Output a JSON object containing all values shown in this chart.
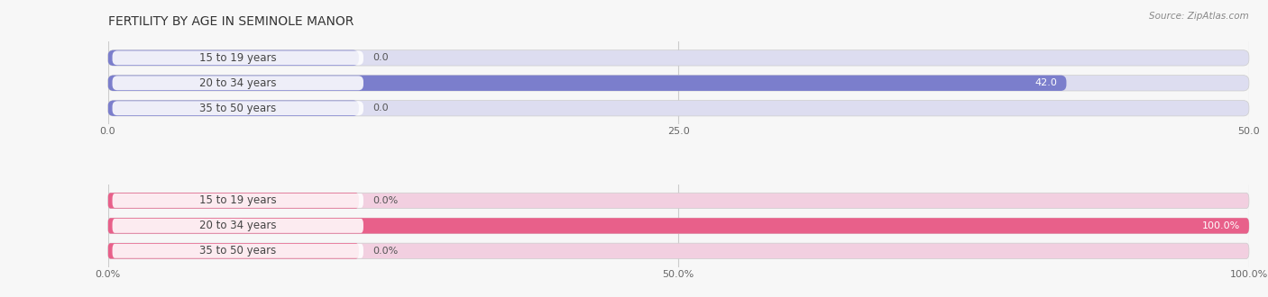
{
  "title": "FERTILITY BY AGE IN SEMINOLE MANOR",
  "source": "Source: ZipAtlas.com",
  "top_chart": {
    "categories": [
      "15 to 19 years",
      "20 to 34 years",
      "35 to 50 years"
    ],
    "values": [
      0.0,
      42.0,
      0.0
    ],
    "xlim": [
      0,
      50
    ],
    "xticks": [
      0.0,
      25.0,
      50.0
    ],
    "xtick_labels": [
      "0.0",
      "25.0",
      "50.0"
    ],
    "bar_color": "#7b7ecc",
    "bar_bg_color": "#ddddf0",
    "label_inside_color": "#ffffff",
    "label_outside_color": "#555555"
  },
  "bottom_chart": {
    "categories": [
      "15 to 19 years",
      "20 to 34 years",
      "35 to 50 years"
    ],
    "values": [
      0.0,
      100.0,
      0.0
    ],
    "xlim": [
      0,
      100
    ],
    "xticks": [
      0.0,
      50.0,
      100.0
    ],
    "xtick_labels": [
      "0.0%",
      "50.0%",
      "100.0%"
    ],
    "bar_color": "#e8608a",
    "bar_bg_color": "#f2cfe0",
    "label_inside_color": "#ffffff",
    "label_outside_color": "#555555"
  },
  "fig_bg_color": "#f7f7f7",
  "bar_height": 0.62,
  "label_pill_color": "#ffffff",
  "label_pill_alpha": 0.88,
  "title_fontsize": 10,
  "label_fontsize": 8,
  "tick_fontsize": 8,
  "cat_fontsize": 8.5,
  "cat_text_color": "#444444"
}
